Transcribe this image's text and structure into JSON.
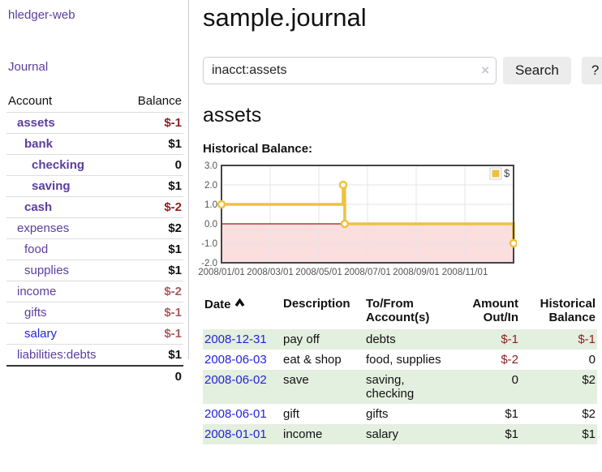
{
  "sidebar": {
    "brand": "hledger-web",
    "nav_journal": "Journal",
    "accounts_table": {
      "header": {
        "account": "Account",
        "balance": "Balance"
      },
      "rows": [
        {
          "name": "assets",
          "balance": "$-1",
          "depth": 1,
          "bold": true,
          "neg": "dark"
        },
        {
          "name": "bank",
          "balance": "$1",
          "depth": 2,
          "bold": true,
          "neg": ""
        },
        {
          "name": "checking",
          "balance": "0",
          "depth": 3,
          "bold": true,
          "neg": ""
        },
        {
          "name": "saving",
          "balance": "$1",
          "depth": 3,
          "bold": true,
          "neg": ""
        },
        {
          "name": "cash",
          "balance": "$-2",
          "depth": 2,
          "bold": true,
          "neg": "dark"
        },
        {
          "name": "expenses",
          "balance": "$2",
          "depth": 1,
          "bold": false,
          "neg": ""
        },
        {
          "name": "food",
          "balance": "$1",
          "depth": 2,
          "bold": false,
          "neg": ""
        },
        {
          "name": "supplies",
          "balance": "$1",
          "depth": 2,
          "bold": false,
          "neg": ""
        },
        {
          "name": "income",
          "balance": "$-2",
          "depth": 1,
          "bold": false,
          "neg": "rose"
        },
        {
          "name": "gifts",
          "balance": "$-1",
          "depth": 2,
          "bold": false,
          "neg": "rose"
        },
        {
          "name": "salary",
          "balance": "$-1",
          "depth": 2,
          "bold": false,
          "neg": "rose",
          "link_color": "blue"
        },
        {
          "name": "liabilities:debts",
          "balance": "$1",
          "depth": 1,
          "bold": false,
          "neg": ""
        }
      ],
      "total": "0"
    }
  },
  "main": {
    "title": "sample.journal",
    "search": {
      "value": "inacct:assets",
      "clear_icon": "×",
      "button": "Search",
      "help_button": "?"
    },
    "account_heading": "assets",
    "chart_heading": "Historical Balance:"
  },
  "chart_data": {
    "type": "line",
    "step": true,
    "title": "Historical Balance",
    "series": [
      {
        "name": "$",
        "color": "#edc240",
        "points": [
          [
            "2008-01-01",
            1
          ],
          [
            "2008-06-01",
            2
          ],
          [
            "2008-06-03",
            0
          ],
          [
            "2008-12-31",
            -1
          ]
        ]
      }
    ],
    "ylim": [
      -2,
      3
    ],
    "yticks": [
      "3.0",
      "2.0",
      "1.0",
      "0.0",
      "-1.0",
      "-2.0"
    ],
    "xticks": [
      "2008/01/01",
      "2008/03/01",
      "2008/05/01",
      "2008/07/01",
      "2008/09/01",
      "2008/11/01"
    ],
    "xrange": [
      "2008-01-01",
      "2008-12-31"
    ],
    "grid": true,
    "negative_region_color": "#fbdede",
    "zero_line_color": "#a41a1a",
    "axis_text_color": "#545454",
    "border_color": "#454545",
    "legend": {
      "label": "$",
      "position": "top-right"
    }
  },
  "transactions": {
    "columns": [
      "Date",
      "Description",
      "To/From Account(s)",
      "Amount Out/In",
      "Historical Balance"
    ],
    "sort_icon": "chevron-up",
    "rows": [
      {
        "date": "2008-12-31",
        "description": "pay off",
        "accounts": "debts",
        "amount": "$-1",
        "balance": "$-1",
        "shaded": true
      },
      {
        "date": "2008-06-03",
        "description": "eat & shop",
        "accounts": "food, supplies",
        "amount": "$-2",
        "balance": "0",
        "shaded": false
      },
      {
        "date": "2008-06-02",
        "description": "save",
        "accounts": "saving, checking",
        "amount": "0",
        "balance": "$2",
        "shaded": true
      },
      {
        "date": "2008-06-01",
        "description": "gift",
        "accounts": "gifts",
        "amount": "$1",
        "balance": "$2",
        "shaded": false
      },
      {
        "date": "2008-01-01",
        "description": "income",
        "accounts": "salary",
        "amount": "$1",
        "balance": "$1",
        "shaded": true
      }
    ]
  }
}
